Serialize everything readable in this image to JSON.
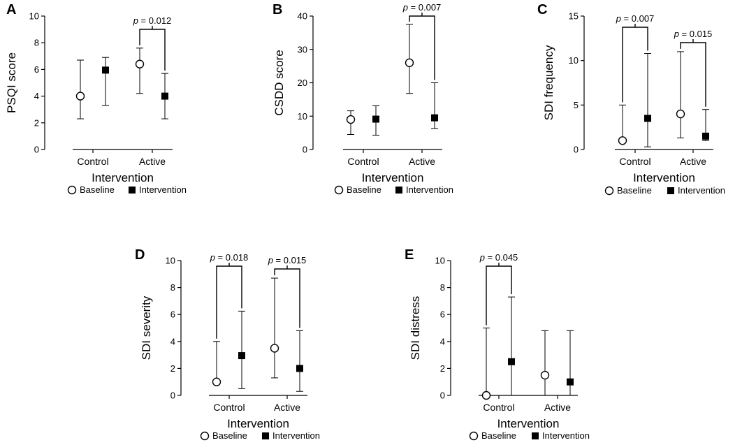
{
  "chart_data": [
    {
      "type": "scatter",
      "panel": "A",
      "ylabel": "PSQI score",
      "xlabel": "Intervention",
      "ylim": [
        0,
        10
      ],
      "yticks": [
        0,
        2,
        4,
        6,
        8,
        10
      ],
      "categories": [
        "Control",
        "Active"
      ],
      "series": [
        {
          "name": "Baseline",
          "marker": "open-circle",
          "values": [
            4.0,
            6.4
          ],
          "lower": [
            2.3,
            4.2
          ],
          "upper": [
            6.7,
            7.6
          ]
        },
        {
          "name": "Intervention",
          "marker": "filled-square",
          "values": [
            5.95,
            4.0
          ],
          "lower": [
            3.3,
            2.3
          ],
          "upper": [
            6.9,
            5.7
          ]
        }
      ],
      "significance": [
        {
          "category": "Active",
          "text": "= 0.012"
        }
      ]
    },
    {
      "type": "scatter",
      "panel": "B",
      "ylabel": "CSDD score",
      "xlabel": "Intervention",
      "ylim": [
        0,
        40
      ],
      "yticks": [
        0,
        10,
        20,
        30,
        40
      ],
      "categories": [
        "Control",
        "Active"
      ],
      "series": [
        {
          "name": "Baseline",
          "marker": "open-circle",
          "values": [
            9.0,
            26.0
          ],
          "lower": [
            4.5,
            16.8
          ],
          "upper": [
            11.6,
            37.5
          ]
        },
        {
          "name": "Intervention",
          "marker": "filled-square",
          "values": [
            9.1,
            9.5
          ],
          "lower": [
            4.3,
            6.3
          ],
          "upper": [
            13.1,
            20.0
          ]
        }
      ],
      "significance": [
        {
          "category": "Active",
          "text": "= 0.007"
        }
      ]
    },
    {
      "type": "scatter",
      "panel": "C",
      "ylabel": "SDI frequency",
      "xlabel": "Intervention",
      "ylim": [
        0,
        15
      ],
      "yticks": [
        0,
        5,
        10,
        15
      ],
      "categories": [
        "Control",
        "Active"
      ],
      "series": [
        {
          "name": "Baseline",
          "marker": "open-circle",
          "values": [
            1.0,
            4.0
          ],
          "lower": [
            1.0,
            1.3
          ],
          "upper": [
            5.0,
            11.0
          ]
        },
        {
          "name": "Intervention",
          "marker": "filled-square",
          "values": [
            3.5,
            1.5
          ],
          "lower": [
            0.3,
            1.0
          ],
          "upper": [
            10.8,
            4.5
          ]
        }
      ],
      "significance": [
        {
          "category": "Control",
          "text": "= 0.007"
        },
        {
          "category": "Active",
          "text": "= 0.015"
        }
      ]
    },
    {
      "type": "scatter",
      "panel": "D",
      "ylabel": "SDI severity",
      "xlabel": "Intervention",
      "ylim": [
        0,
        10
      ],
      "yticks": [
        0,
        2,
        4,
        6,
        8,
        10
      ],
      "categories": [
        "Control",
        "Active"
      ],
      "series": [
        {
          "name": "Baseline",
          "marker": "open-circle",
          "values": [
            1.0,
            3.5
          ],
          "lower": [
            1.0,
            1.3
          ],
          "upper": [
            4.0,
            8.7
          ]
        },
        {
          "name": "Intervention",
          "marker": "filled-square",
          "values": [
            2.95,
            2.0
          ],
          "lower": [
            0.5,
            0.3
          ],
          "upper": [
            6.25,
            4.8
          ]
        }
      ],
      "significance": [
        {
          "category": "Control",
          "text": "= 0.018"
        },
        {
          "category": "Active",
          "text": "= 0.015"
        }
      ]
    },
    {
      "type": "scatter",
      "panel": "E",
      "ylabel": "SDI distress",
      "xlabel": "Intervention",
      "ylim": [
        0,
        10
      ],
      "yticks": [
        0,
        2,
        4,
        6,
        8,
        10
      ],
      "categories": [
        "Control",
        "Active"
      ],
      "series": [
        {
          "name": "Baseline",
          "marker": "open-circle",
          "values": [
            0.0,
            1.5
          ],
          "lower": [
            0.0,
            0.0
          ],
          "upper": [
            5.0,
            4.8
          ]
        },
        {
          "name": "Intervention",
          "marker": "filled-square",
          "values": [
            2.5,
            1.0
          ],
          "lower": [
            0.0,
            0.0
          ],
          "upper": [
            7.3,
            4.8
          ]
        }
      ],
      "significance": [
        {
          "category": "Control",
          "text": "= 0.045"
        }
      ]
    }
  ],
  "p_symbol": "p",
  "legend": {
    "baseline": "Baseline",
    "intervention": "Intervention"
  }
}
